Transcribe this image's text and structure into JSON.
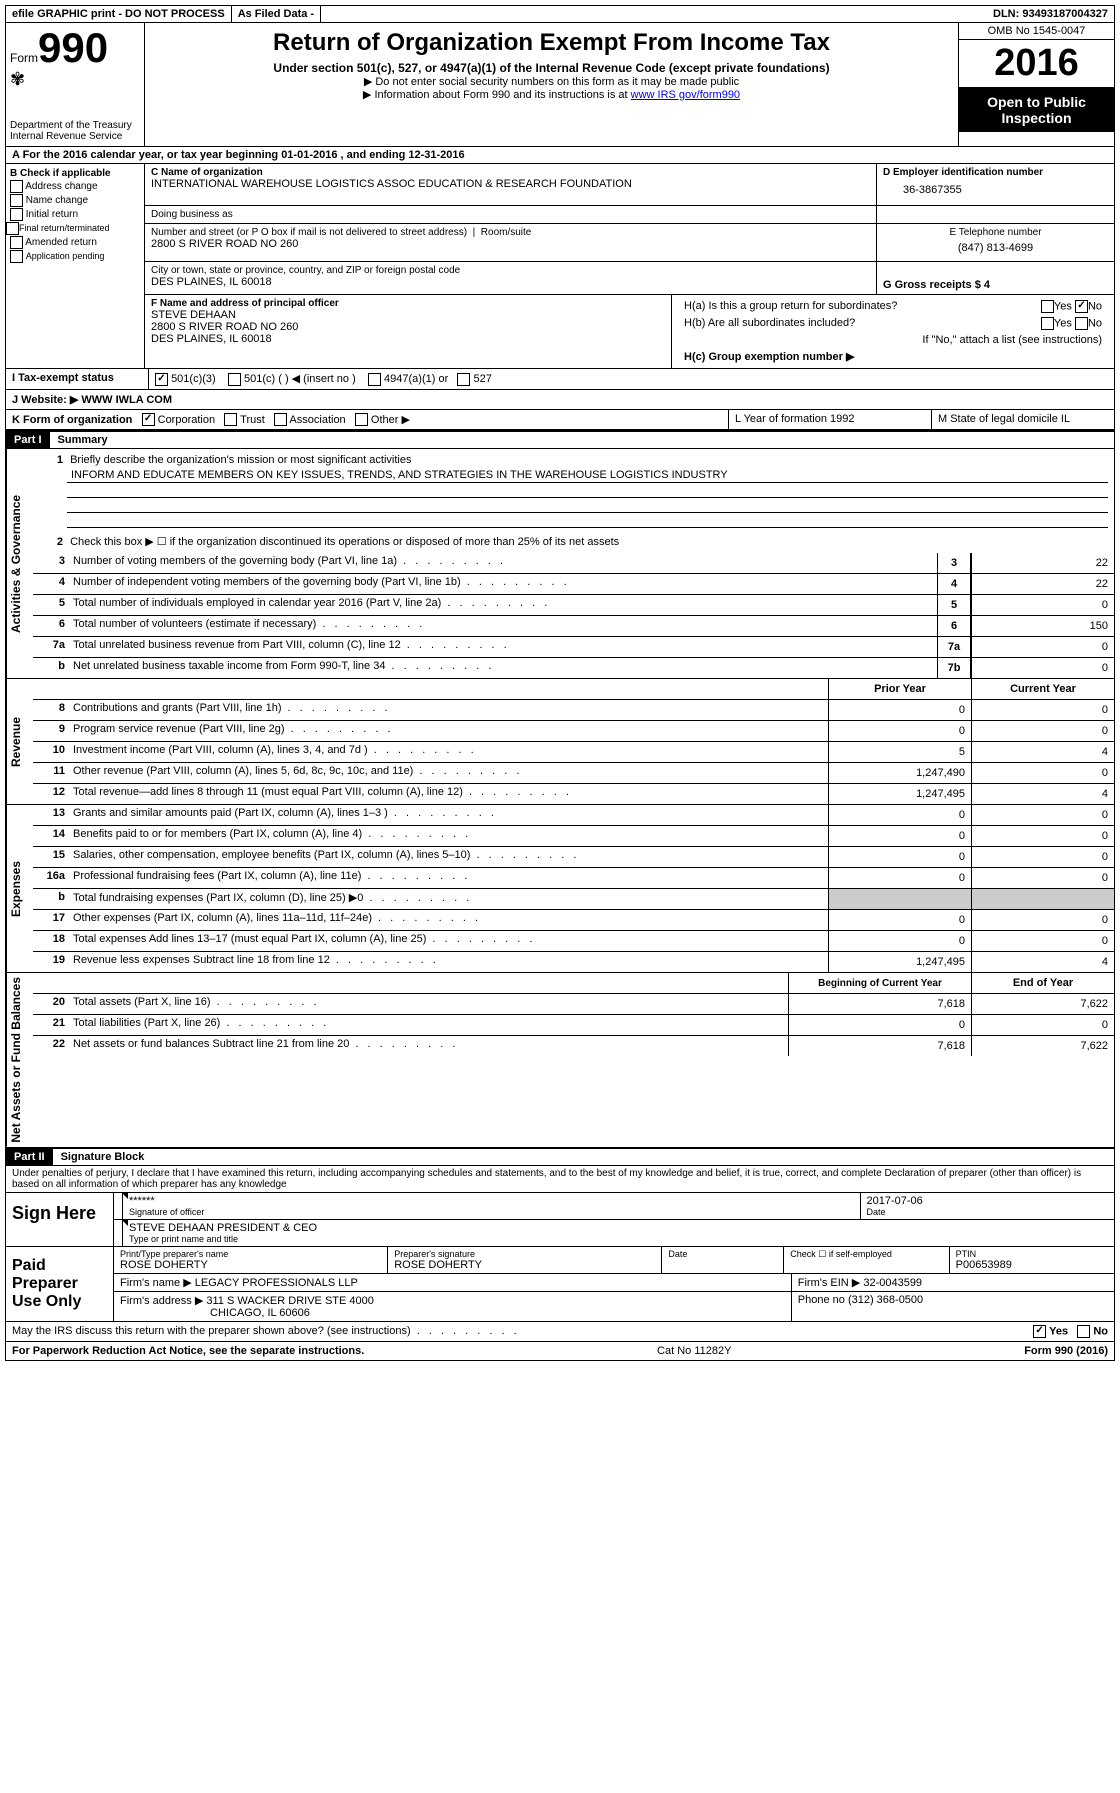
{
  "topbar": {
    "efile": "efile GRAPHIC print - DO NOT PROCESS",
    "asfiled": "As Filed Data -",
    "dln": "DLN: 93493187004327"
  },
  "header": {
    "form_label": "Form",
    "form_num": "990",
    "dept1": "Department of the Treasury",
    "dept2": "Internal Revenue Service",
    "title": "Return of Organization Exempt From Income Tax",
    "subtitle": "Under section 501(c), 527, or 4947(a)(1) of the Internal Revenue Code (except private foundations)",
    "note1": "▶ Do not enter social security numbers on this form as it may be made public",
    "note2_pre": "▶ Information about Form 990 and its instructions is at ",
    "note2_link": "www IRS gov/form990",
    "omb": "OMB No 1545-0047",
    "year": "2016",
    "open": "Open to Public Inspection"
  },
  "rowA": "A  For the 2016 calendar year, or tax year beginning 01-01-2016   , and ending 12-31-2016",
  "colB": {
    "title": "B Check if applicable",
    "items": [
      "Address change",
      "Name change",
      "Initial return",
      "Final return/terminated",
      "Amended return",
      "Application pending"
    ]
  },
  "colC": {
    "name_label": "C Name of organization",
    "name": "INTERNATIONAL WAREHOUSE LOGISTICS ASSOC EDUCATION & RESEARCH FOUNDATION",
    "dba_label": "Doing business as",
    "street_label": "Number and street (or P O  box if mail is not delivered to street address)",
    "room_label": "Room/suite",
    "street": "2800 S RIVER ROAD NO 260",
    "city_label": "City or town, state or province, country, and ZIP or foreign postal code",
    "city": "DES PLAINES, IL  60018",
    "f_label": "F  Name and address of principal officer",
    "f_name": "STEVE DEHAAN",
    "f_addr1": "2800 S RIVER ROAD NO 260",
    "f_addr2": "DES PLAINES, IL  60018"
  },
  "colD": {
    "ein_label": "D Employer identification number",
    "ein": "36-3867355",
    "tel_label": "E Telephone number",
    "tel": "(847) 813-4699",
    "gross_label": "G Gross receipts $ 4"
  },
  "colH": {
    "ha_label": "H(a)  Is this a group return for subordinates?",
    "ha_yes": "Yes",
    "ha_no": "No",
    "ha_no_checked": true,
    "hb_label": "H(b)  Are all subordinates included?",
    "hb_yes": "Yes",
    "hb_no": "No",
    "hb_note": "If \"No,\" attach a list  (see instructions)",
    "hc_label": "H(c)  Group exemption number ▶"
  },
  "rowI": {
    "label": "I  Tax-exempt status",
    "opt1": "501(c)(3)",
    "opt1_checked": true,
    "opt2": "501(c) (  ) ◀ (insert no )",
    "opt3": "4947(a)(1) or",
    "opt4": "527"
  },
  "rowJ": "J  Website: ▶  WWW IWLA COM",
  "rowK": {
    "label": "K Form of organization",
    "corp": "Corporation",
    "corp_checked": true,
    "trust": "Trust",
    "assoc": "Association",
    "other": "Other ▶",
    "l_label": "L Year of formation  1992",
    "m_label": "M State of legal domicile  IL"
  },
  "part1": {
    "header": "Part I",
    "title": "Summary",
    "line1": "Briefly describe the organization's mission or most significant activities",
    "line1_val": "INFORM AND EDUCATE MEMBERS ON KEY ISSUES, TRENDS, AND STRATEGIES IN THE WAREHOUSE LOGISTICS INDUSTRY",
    "line2": "Check this box ▶ ☐  if the organization discontinued its operations or disposed of more than 25% of its net assets",
    "vert_ag": "Activities & Governance",
    "vert_rev": "Revenue",
    "vert_exp": "Expenses",
    "vert_net": "Net Assets or Fund Balances",
    "gov_rows": [
      {
        "n": "3",
        "d": "Number of voting members of the governing body (Part VI, line 1a)",
        "b": "3",
        "v": "22"
      },
      {
        "n": "4",
        "d": "Number of independent voting members of the governing body (Part VI, line 1b)",
        "b": "4",
        "v": "22"
      },
      {
        "n": "5",
        "d": "Total number of individuals employed in calendar year 2016 (Part V, line 2a)",
        "b": "5",
        "v": "0"
      },
      {
        "n": "6",
        "d": "Total number of volunteers (estimate if necessary)",
        "b": "6",
        "v": "150"
      },
      {
        "n": "7a",
        "d": "Total unrelated business revenue from Part VIII, column (C), line 12",
        "b": "7a",
        "v": "0"
      },
      {
        "n": "b",
        "d": "Net unrelated business taxable income from Form 990-T, line 34",
        "b": "7b",
        "v": "0"
      }
    ],
    "prior_label": "Prior Year",
    "current_label": "Current Year",
    "rev_rows": [
      {
        "n": "8",
        "d": "Contributions and grants (Part VIII, line 1h)",
        "p": "0",
        "c": "0"
      },
      {
        "n": "9",
        "d": "Program service revenue (Part VIII, line 2g)",
        "p": "0",
        "c": "0"
      },
      {
        "n": "10",
        "d": "Investment income (Part VIII, column (A), lines 3, 4, and 7d )",
        "p": "5",
        "c": "4"
      },
      {
        "n": "11",
        "d": "Other revenue (Part VIII, column (A), lines 5, 6d, 8c, 9c, 10c, and 11e)",
        "p": "1,247,490",
        "c": "0"
      },
      {
        "n": "12",
        "d": "Total revenue—add lines 8 through 11 (must equal Part VIII, column (A), line 12)",
        "p": "1,247,495",
        "c": "4"
      }
    ],
    "exp_rows": [
      {
        "n": "13",
        "d": "Grants and similar amounts paid (Part IX, column (A), lines 1–3 )",
        "p": "0",
        "c": "0"
      },
      {
        "n": "14",
        "d": "Benefits paid to or for members (Part IX, column (A), line 4)",
        "p": "0",
        "c": "0"
      },
      {
        "n": "15",
        "d": "Salaries, other compensation, employee benefits (Part IX, column (A), lines 5–10)",
        "p": "0",
        "c": "0"
      },
      {
        "n": "16a",
        "d": "Professional fundraising fees (Part IX, column (A), line 11e)",
        "p": "0",
        "c": "0"
      },
      {
        "n": "b",
        "d": "Total fundraising expenses (Part IX, column (D), line 25) ▶0",
        "p": "",
        "c": "",
        "shaded": true
      },
      {
        "n": "17",
        "d": "Other expenses (Part IX, column (A), lines 11a–11d, 11f–24e)",
        "p": "0",
        "c": "0"
      },
      {
        "n": "18",
        "d": "Total expenses  Add lines 13–17 (must equal Part IX, column (A), line 25)",
        "p": "0",
        "c": "0"
      },
      {
        "n": "19",
        "d": "Revenue less expenses  Subtract line 18 from line 12",
        "p": "1,247,495",
        "c": "4"
      }
    ],
    "bcy_label": "Beginning of Current Year",
    "eoy_label": "End of Year",
    "net_rows": [
      {
        "n": "20",
        "d": "Total assets (Part X, line 16)",
        "p": "7,618",
        "c": "7,622"
      },
      {
        "n": "21",
        "d": "Total liabilities (Part X, line 26)",
        "p": "0",
        "c": "0"
      },
      {
        "n": "22",
        "d": "Net assets or fund balances  Subtract line 21 from line 20",
        "p": "7,618",
        "c": "7,622"
      }
    ]
  },
  "part2": {
    "header": "Part II",
    "title": "Signature Block",
    "perjury": "Under penalties of perjury, I declare that I have examined this return, including accompanying schedules and statements, and to the best of my knowledge and belief, it is true, correct, and complete  Declaration of preparer (other than officer) is based on all information of which preparer has any knowledge",
    "sign_here": "Sign Here",
    "stars": "******",
    "sig_officer_label": "Signature of officer",
    "date_label": "Date",
    "date_val": "2017-07-06",
    "name_title": "STEVE DEHAAN  PRESIDENT & CEO",
    "name_title_label": "Type or print name and title",
    "paid_label": "Paid Preparer Use Only",
    "prep_name_label": "Print/Type preparer's name",
    "prep_name": "ROSE DOHERTY",
    "prep_sig_label": "Preparer's signature",
    "prep_sig": "ROSE DOHERTY",
    "prep_date_label": "Date",
    "check_label": "Check ☐ if self-employed",
    "ptin_label": "PTIN",
    "ptin": "P00653989",
    "firm_name_label": "Firm's name     ▶",
    "firm_name": "LEGACY PROFESSIONALS LLP",
    "firm_ein_label": "Firm's EIN ▶",
    "firm_ein": "32-0043599",
    "firm_addr_label": "Firm's address ▶",
    "firm_addr1": "311 S WACKER DRIVE STE 4000",
    "firm_addr2": "CHICAGO, IL  60606",
    "phone_label": "Phone no",
    "phone": "(312) 368-0500",
    "discuss": "May the IRS discuss this return with the preparer shown above? (see instructions)",
    "discuss_yes": "Yes",
    "discuss_yes_checked": true,
    "discuss_no": "No"
  },
  "footer": {
    "left": "For Paperwork Reduction Act Notice, see the separate instructions.",
    "mid": "Cat  No  11282Y",
    "right": "Form 990 (2016)"
  }
}
